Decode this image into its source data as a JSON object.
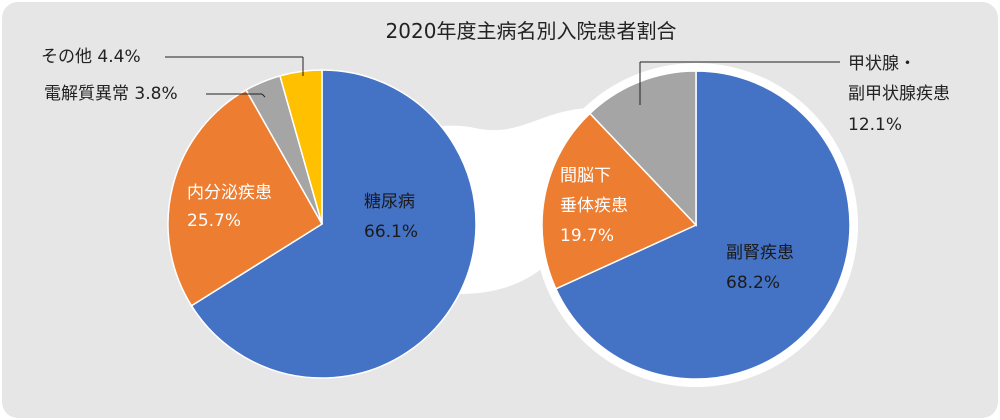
{
  "chart_data": [
    {
      "type": "pie",
      "title": "2020年度主病名別入院患者割合",
      "categories": [
        "糖尿病",
        "内分泌疾患",
        "電解質異常",
        "その他"
      ],
      "values": [
        66.1,
        25.7,
        3.8,
        4.4
      ],
      "labels": [
        {
          "name": "糖尿病",
          "value": "66.1%"
        },
        {
          "name": "内分泌疾患",
          "value": "25.7%"
        },
        {
          "name": "電解質異常",
          "value": "3.8%"
        },
        {
          "name": "その他",
          "value": "4.4%"
        }
      ],
      "colors": [
        "#4472c4",
        "#ed7d31",
        "#a5a5a5",
        "#ffc000"
      ]
    },
    {
      "type": "pie",
      "categories": [
        "副腎疾患",
        "間脳下垂体疾患",
        "甲状腺・副甲状腺疾患"
      ],
      "values": [
        68.2,
        19.7,
        12.1
      ],
      "labels": [
        {
          "name": "副腎疾患",
          "value": "68.2%"
        },
        {
          "name": "間脳下垂体疾患",
          "value": "19.7%"
        },
        {
          "name": "甲状腺・副甲状腺疾患",
          "value": "12.1%"
        }
      ],
      "colors": [
        "#4472c4",
        "#ed7d31",
        "#a5a5a5"
      ]
    }
  ],
  "background_color": "#e6e6e6",
  "connector_color": "#ffffff"
}
